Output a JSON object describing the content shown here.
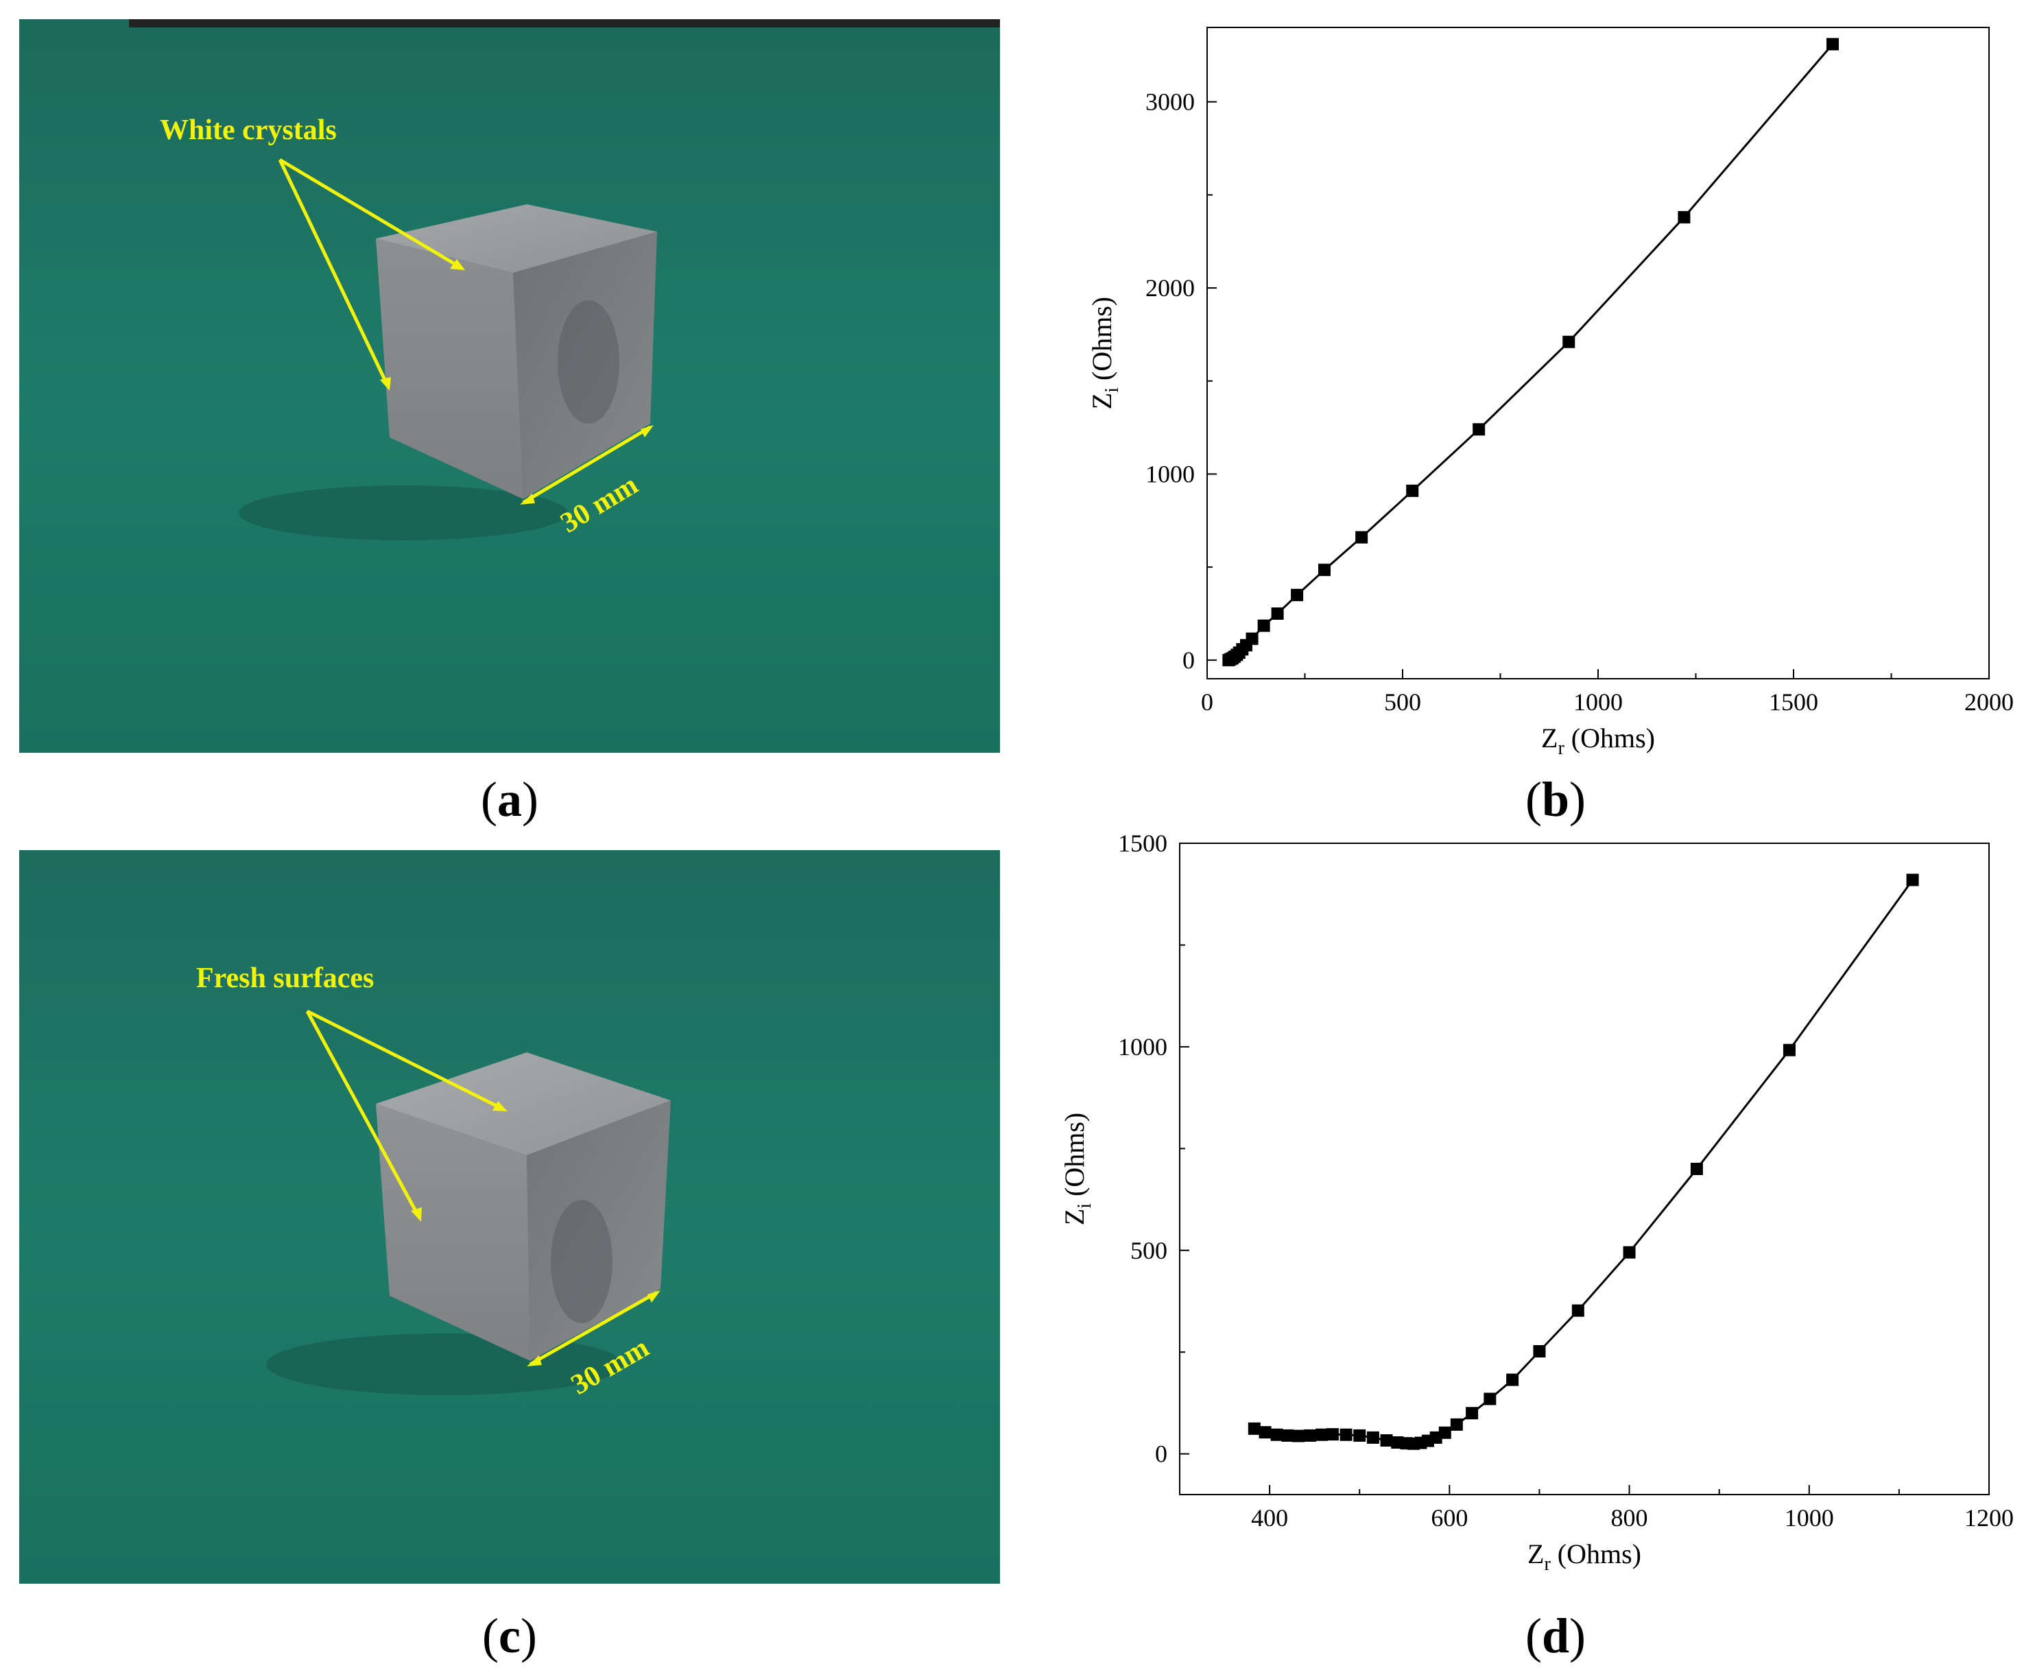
{
  "panels": {
    "a": {
      "caption_open": "(",
      "caption_letter": "a",
      "caption_close": ")",
      "annotation": "White crystals",
      "dimension": "30 mm"
    },
    "b": {
      "caption_open": "(",
      "caption_letter": "b",
      "caption_close": ")"
    },
    "c": {
      "caption_open": "(",
      "caption_letter": "c",
      "caption_close": ")",
      "annotation": "Fresh surfaces",
      "dimension": "30 mm"
    },
    "d": {
      "caption_open": "(",
      "caption_letter": "d",
      "caption_close": ")"
    }
  },
  "colors": {
    "background_green": "#1f7a68",
    "annotation_yellow": "#f2f20a",
    "cube_gray": "#8c8f92",
    "marker": "#000000"
  },
  "chart_data": [
    {
      "id": "b",
      "type": "line",
      "title": "",
      "xlabel_main": "Z",
      "xlabel_sub": "r",
      "xlabel_rest": " (Ohms)",
      "ylabel_main": "Z",
      "ylabel_sub": "i",
      "ylabel_rest": " (Ohms)",
      "xlim": [
        0,
        2000
      ],
      "ylim": [
        -100,
        3400
      ],
      "xticks": [
        0,
        500,
        1000,
        1500,
        2000
      ],
      "yticks": [
        0,
        1000,
        2000,
        3000
      ],
      "grid": false,
      "marker": "square",
      "series": [
        {
          "x": [
            55,
            60,
            65,
            70,
            76,
            82,
            90,
            100,
            115,
            145,
            180,
            230,
            300,
            395,
            525,
            695,
            925,
            1220,
            1600
          ],
          "y": [
            0,
            5,
            10,
            18,
            28,
            40,
            58,
            80,
            115,
            185,
            250,
            350,
            485,
            660,
            910,
            1240,
            1710,
            2380,
            3310
          ]
        }
      ]
    },
    {
      "id": "d",
      "type": "line",
      "title": "",
      "xlabel_main": "Z",
      "xlabel_sub": "r",
      "xlabel_rest": " (Ohms)",
      "ylabel_main": "Z",
      "ylabel_sub": "i",
      "ylabel_rest": " (Ohms)",
      "xlim": [
        300,
        1200
      ],
      "ylim": [
        -100,
        1500
      ],
      "xticks": [
        400,
        600,
        800,
        1000,
        1200
      ],
      "yticks": [
        0,
        500,
        1000,
        1500
      ],
      "grid": false,
      "marker": "square",
      "series": [
        {
          "x": [
            383,
            395,
            408,
            420,
            432,
            445,
            458,
            470,
            485,
            500,
            515,
            530,
            542,
            552,
            560,
            568,
            576,
            585,
            595,
            608,
            625,
            645,
            670,
            700,
            743,
            800,
            875,
            978,
            1115
          ],
          "y": [
            62,
            53,
            47,
            45,
            44,
            45,
            47,
            48,
            47,
            45,
            40,
            33,
            28,
            26,
            25,
            27,
            32,
            40,
            52,
            72,
            100,
            135,
            182,
            252,
            352,
            495,
            700,
            992,
            1410
          ]
        }
      ]
    }
  ]
}
